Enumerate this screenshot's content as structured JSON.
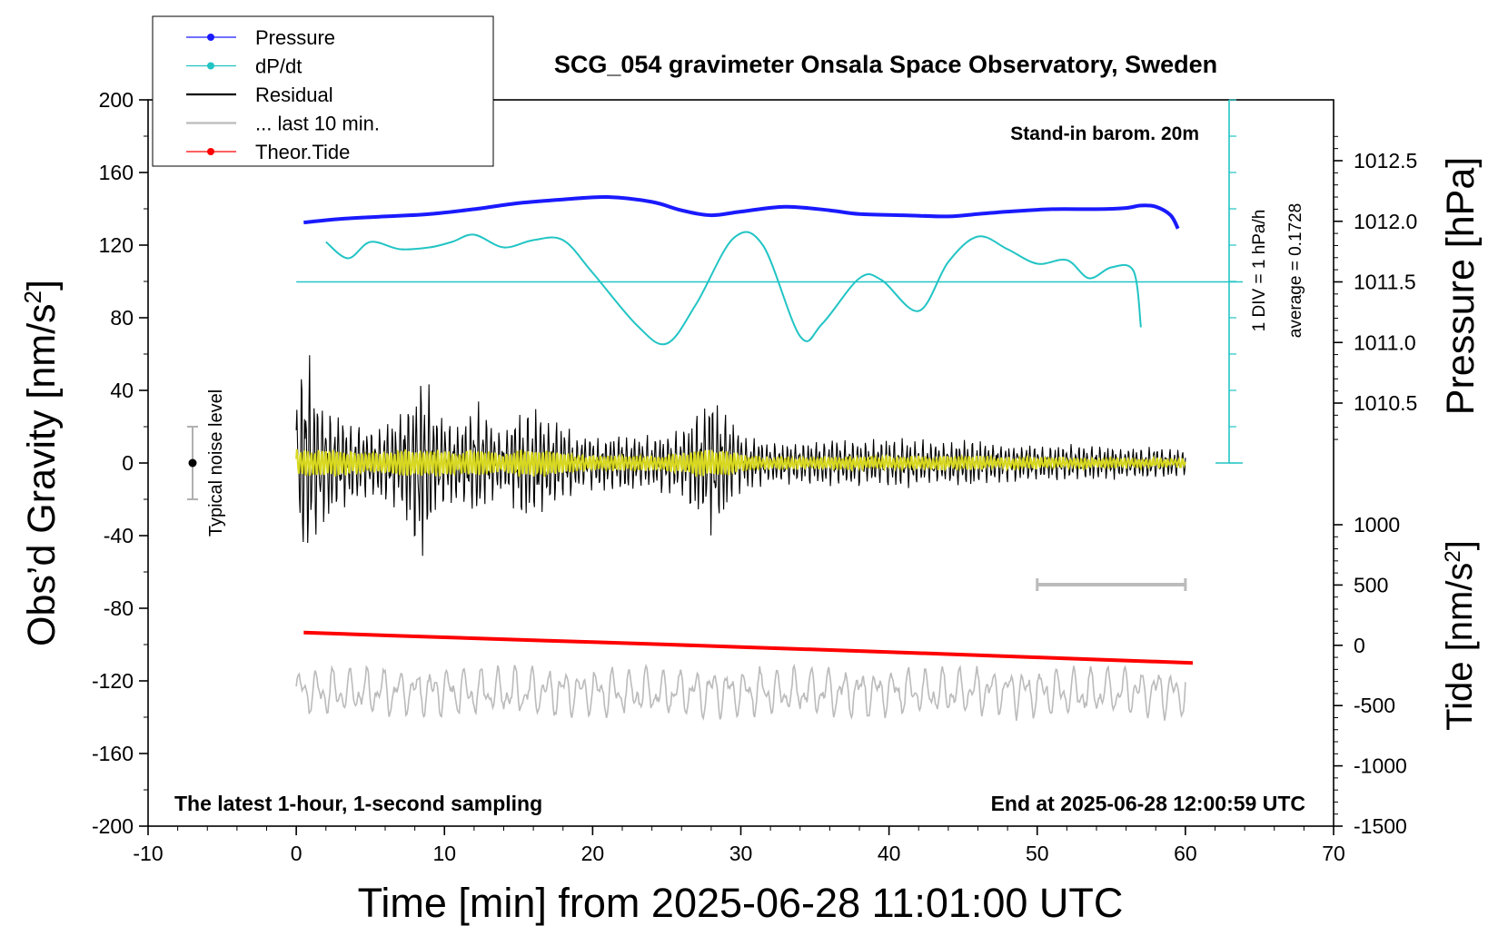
{
  "chart_data": {
    "type": "line",
    "title": "SCG_054 gravimeter Onsala Space Observatory, Sweden",
    "xlabel": "Time [min] from 2025-06-28 11:01:00 UTC",
    "ylabel": "Obs'd Gravity [nm/s²]",
    "ylabel_main": "Obs’d Gravity [nm/s",
    "ylabel_sup": "2",
    "ylabel_end": "]",
    "pressure_label": "Pressure [hPa]",
    "tide_label_main": "Tide [nm/s",
    "tide_label_sup": "2",
    "tide_label_end": "]",
    "xlim": [
      -10,
      70
    ],
    "ylim": [
      -200,
      200
    ],
    "xticks": [
      "-10",
      "0",
      "10",
      "20",
      "30",
      "40",
      "50",
      "60",
      "70"
    ],
    "yticks": [
      "200",
      "160",
      "120",
      "80",
      "40",
      "0",
      "-40",
      "-80",
      "-120",
      "-160",
      "-200"
    ],
    "pressure_ticks": [
      "1012.5",
      "1012.0",
      "1011.5",
      "1011.0",
      "1010.5"
    ],
    "tide_ticks": [
      "1000",
      "500",
      "0",
      "-500",
      "-1000",
      "-1500"
    ],
    "legend_position": "top-left",
    "legend": [
      {
        "label": "Pressure",
        "color": "#1a1aff",
        "marker": true
      },
      {
        "label": "dP/dt",
        "color": "#22c4c4",
        "marker": true
      },
      {
        "label": "Residual",
        "color": "#000000",
        "marker": false
      },
      {
        "label": "... last 10 min.",
        "color": "#bbbbbb",
        "marker": false
      },
      {
        "label": "Theor.Tide",
        "color": "#ff0000",
        "marker": true
      }
    ],
    "annotations": {
      "stand_in": "Stand-in barom. 20m",
      "div_label": "1 DIV = 1 hPa/h",
      "average_label": "average = 0.1728",
      "noise_label": "Typical noise level",
      "bottom_left": "The latest 1-hour, 1-second sampling",
      "bottom_right": "End at 2025-06-28 12:00:59 UTC"
    },
    "series": [
      {
        "name": "Pressure",
        "color": "#1a1aff",
        "x": [
          0.5,
          3,
          6,
          9,
          12,
          15,
          18,
          21,
          24,
          26,
          28,
          30,
          33,
          36,
          38,
          41,
          44,
          46,
          48,
          51,
          54,
          56,
          57,
          58,
          59,
          59.5
        ],
        "y": [
          1011.99,
          1012.02,
          1012.04,
          1012.06,
          1012.1,
          1012.15,
          1012.18,
          1012.2,
          1012.16,
          1012.09,
          1012.05,
          1012.08,
          1012.12,
          1012.09,
          1012.06,
          1012.05,
          1012.04,
          1012.06,
          1012.08,
          1012.1,
          1012.1,
          1012.11,
          1012.13,
          1012.12,
          1012.05,
          1011.94
        ]
      },
      {
        "name": "dP/dt",
        "color": "#22c4c4",
        "x": [
          2,
          3.5,
          5,
          7,
          9,
          10.5,
          12,
          14,
          16,
          18,
          20,
          23,
          25,
          27,
          29.5,
          31.5,
          34,
          35.5,
          38,
          39.5,
          42,
          44,
          46,
          48,
          50,
          52,
          53.5,
          55,
          56.5,
          57
        ],
        "y": [
          1.1,
          0.65,
          1.1,
          0.9,
          0.95,
          1.1,
          1.3,
          0.95,
          1.15,
          1.15,
          0.25,
          -1.2,
          -1.7,
          -0.6,
          1.2,
          1.0,
          -1.5,
          -1.15,
          0.1,
          0.05,
          -0.8,
          0.55,
          1.25,
          0.9,
          0.5,
          0.6,
          0.1,
          0.4,
          0.3,
          -1.25
        ]
      },
      {
        "name": "Theor.Tide",
        "color": "#ff0000",
        "x": [
          0.5,
          10,
          20,
          30,
          40,
          50,
          60.5
        ],
        "y": [
          106,
          66,
          26,
          -14,
          -56,
          -100,
          -146
        ]
      }
    ],
    "residual": {
      "x_start": 0,
      "x_end": 60,
      "amplitude_envelope": [
        [
          0,
          48
        ],
        [
          0.7,
          72
        ],
        [
          1.5,
          40
        ],
        [
          3,
          28
        ],
        [
          5,
          22
        ],
        [
          7,
          28
        ],
        [
          8.5,
          62
        ],
        [
          9.5,
          30
        ],
        [
          11,
          22
        ],
        [
          12,
          38
        ],
        [
          14,
          18
        ],
        [
          15.5,
          36
        ],
        [
          18,
          24
        ],
        [
          19,
          16
        ],
        [
          22,
          18
        ],
        [
          24,
          16
        ],
        [
          26,
          20
        ],
        [
          28,
          42
        ],
        [
          30,
          18
        ],
        [
          32,
          12
        ],
        [
          36,
          14
        ],
        [
          40,
          14
        ],
        [
          46,
          14
        ],
        [
          48,
          12
        ],
        [
          55,
          10
        ],
        [
          60,
          8
        ]
      ],
      "offset": 0
    },
    "last_10_min": {
      "x_start": 50,
      "x_end": 60,
      "y_display": -66,
      "scale_bar_label": ""
    },
    "noise_level": {
      "x": -7,
      "y_center": 0,
      "y_low": -20,
      "y_high": 20
    },
    "dpdt_zero_level_hpa": 1011.5,
    "dpdt_scale_hpa_per_div": 1
  }
}
